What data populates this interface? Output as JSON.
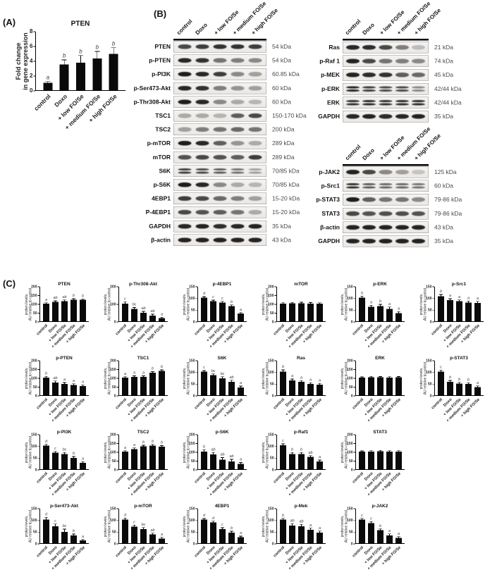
{
  "panelA": {
    "label": "(A)"
  },
  "panelB": {
    "label": "(B)",
    "lanes": [
      "control",
      "Doxo",
      "+ low FO/Se",
      "+ medium FO/Se",
      "+ high FO/Se"
    ],
    "groups": [
      {
        "name": "pi3k-akt-mtor-blots",
        "rows": [
          {
            "label": "PTEN",
            "kda": "54 kDa",
            "bands": [
              0.75,
              0.8,
              0.85,
              0.85,
              0.8
            ]
          },
          {
            "label": "p-PTEN",
            "kda": "54 kDa",
            "bands": [
              0.9,
              0.85,
              0.55,
              0.5,
              0.45
            ]
          },
          {
            "label": "p-PI3K",
            "kda": "60.85 kDa",
            "bands": [
              0.95,
              0.9,
              0.8,
              0.45,
              0.35
            ]
          },
          {
            "label": "p-Ser473-Akt",
            "kda": "60 kDa",
            "bands": [
              0.9,
              0.85,
              0.5,
              0.4,
              0.35
            ]
          },
          {
            "label": "p-Thr308-Akt",
            "kda": "60 kDa",
            "bands": [
              0.95,
              0.9,
              0.45,
              0.3,
              0.25
            ]
          },
          {
            "label": "TSC1",
            "kda": "150-170 kDa",
            "bands": [
              0.3,
              0.3,
              0.25,
              0.65,
              0.75
            ]
          },
          {
            "label": "TSC2",
            "kda": "200 kDa",
            "bands": [
              0.35,
              0.5,
              0.55,
              0.6,
              0.55
            ]
          },
          {
            "label": "p-mTOR",
            "kda": "289 kDa",
            "bands": [
              0.95,
              0.9,
              0.65,
              0.4,
              0.3
            ]
          },
          {
            "label": "mTOR",
            "kda": "289 kDa",
            "bands": [
              0.7,
              0.75,
              0.7,
              0.65,
              0.8
            ]
          },
          {
            "label": "S6K",
            "kda": "70/85 kDa",
            "doublet": true,
            "bands": [
              0.8,
              0.75,
              0.65,
              0.55,
              0.35
            ]
          },
          {
            "label": "p-S6K",
            "kda": "70/85 kDa",
            "bands": [
              0.95,
              0.9,
              0.45,
              0.3,
              0.25
            ]
          },
          {
            "label": "4EBP1",
            "kda": "15-20 kDa",
            "bands": [
              0.8,
              0.75,
              0.6,
              0.5,
              0.35
            ]
          },
          {
            "label": "P-4EBP1",
            "kda": "15-20 kDa",
            "bands": [
              0.75,
              0.7,
              0.65,
              0.55,
              0.3
            ]
          },
          {
            "label": "GAPDH",
            "kda": "35 kDa",
            "bands": [
              0.9,
              0.92,
              0.88,
              0.9,
              0.92
            ]
          },
          {
            "label": "β-actin",
            "kda": "43 kDa",
            "bands": [
              0.92,
              0.92,
              0.92,
              0.92,
              0.92
            ]
          }
        ]
      },
      {
        "name": "ras-erk-blots",
        "rows": [
          {
            "label": "Ras",
            "kda": "21 kDa",
            "bands": [
              0.9,
              0.88,
              0.75,
              0.5,
              0.22
            ]
          },
          {
            "label": "p-Raf 1",
            "kda": "74 kDa",
            "bands": [
              0.92,
              0.75,
              0.55,
              0.5,
              0.45
            ]
          },
          {
            "label": "p-MEK",
            "kda": "45 kDa",
            "bands": [
              0.92,
              0.88,
              0.85,
              0.65,
              0.6
            ]
          },
          {
            "label": "p-ERK",
            "kda": "42/44 kDa",
            "doublet": true,
            "bands": [
              0.92,
              0.8,
              0.75,
              0.75,
              0.45
            ]
          },
          {
            "label": "ERK",
            "kda": "42/44 kDa",
            "doublet": true,
            "bands": [
              0.85,
              0.88,
              0.85,
              0.88,
              0.88
            ]
          },
          {
            "label": "GAPDH",
            "kda": "35 kDa",
            "bands": [
              0.9,
              0.92,
              0.88,
              0.9,
              0.92
            ]
          }
        ]
      },
      {
        "name": "jak-stat-blots",
        "rows": [
          {
            "label": "p-JAK2",
            "kda": "125 kDa",
            "bands": [
              0.92,
              0.75,
              0.45,
              0.35,
              0.18
            ]
          },
          {
            "label": "p-Src1",
            "kda": "60 kDa",
            "doublet": true,
            "bands": [
              0.85,
              0.65,
              0.6,
              0.6,
              0.55
            ]
          },
          {
            "label": "p-STAT3",
            "kda": "79-86 kDa",
            "bands": [
              0.95,
              0.65,
              0.55,
              0.55,
              0.45
            ]
          },
          {
            "label": "STAT3",
            "kda": "79-86 kDa",
            "bands": [
              0.75,
              0.7,
              0.72,
              0.72,
              0.7
            ]
          },
          {
            "label": "β-actin",
            "kda": "43 kDa",
            "bands": [
              0.92,
              0.92,
              0.92,
              0.92,
              0.92
            ]
          },
          {
            "label": "GAPDH",
            "kda": "35 kDa",
            "bands": [
              0.92,
              0.92,
              0.92,
              0.92,
              0.92
            ]
          }
        ]
      }
    ]
  },
  "panelC": {
    "label": "(C)"
  },
  "chart_data": {
    "panelA": {
      "type": "bar",
      "title": "PTEN",
      "ylabel_lines": [
        "Fold change",
        "in gene expression"
      ],
      "categories": [
        "control",
        "Doxo",
        "+ low FO/Se",
        "+ medium FO/Se",
        "+ high FO/Se"
      ],
      "values": [
        1,
        3.5,
        3.7,
        4.3,
        4.9
      ],
      "errors": [
        0.12,
        0.55,
        0.95,
        0.9,
        0.8
      ],
      "letters": [
        "a",
        "b",
        "b",
        "b",
        "b"
      ],
      "ymax": 8,
      "ystep": 2
    },
    "panelC": {
      "type": "bar",
      "ylabel_lines": [
        "protien levels,",
        "AU relative to control"
      ],
      "categories": [
        "control",
        "Doxo",
        "+ low FO/Se",
        "+ medium FO/Se",
        "+ high FO/Se"
      ],
      "layout_rows": [
        6,
        6,
        5,
        5
      ],
      "charts": [
        {
          "title": "PTEN",
          "ymax": 200,
          "ystep": 50,
          "values": [
            100,
            110,
            115,
            122,
            122
          ],
          "errors": [
            4,
            5,
            5,
            5,
            4
          ],
          "letters": [
            "a",
            "ab",
            "ab",
            "b",
            "b"
          ]
        },
        {
          "title": "p-Thr308-Akt",
          "ymax": 200,
          "ystep": 100,
          "values": [
            100,
            70,
            48,
            33,
            18
          ],
          "errors": [
            10,
            7,
            7,
            6,
            4
          ],
          "letters": [
            "c",
            "bc",
            "ab",
            "ab",
            "a"
          ]
        },
        {
          "title": "p-4EBP1",
          "ymax": 150,
          "ystep": 50,
          "values": [
            100,
            85,
            80,
            65,
            33
          ],
          "errors": [
            4,
            4,
            4,
            4,
            3
          ],
          "letters": [
            "d",
            "c",
            "c",
            "b",
            "a"
          ]
        },
        {
          "title": "mTOR",
          "ymax": 200,
          "ystep": 50,
          "values": [
            100,
            102,
            103,
            101,
            100
          ],
          "errors": [
            4,
            4,
            4,
            4,
            4
          ],
          "letters": [
            "",
            "",
            "",
            "",
            ""
          ]
        },
        {
          "title": "p-ERK",
          "ymax": 150,
          "ystep": 50,
          "values": [
            100,
            62,
            65,
            52,
            35
          ],
          "errors": [
            6,
            5,
            6,
            8,
            5
          ],
          "letters": [
            "b",
            "a",
            "b",
            "a",
            "a"
          ]
        },
        {
          "title": "p-Src1",
          "ymax": 150,
          "ystep": 50,
          "values": [
            107,
            90,
            85,
            80,
            78
          ],
          "errors": [
            6,
            5,
            5,
            5,
            6
          ],
          "letters": [
            "b",
            "a",
            "a",
            "a",
            "a"
          ]
        },
        {
          "title": "p-PTEN",
          "ymax": 200,
          "ystep": 50,
          "values": [
            100,
            73,
            65,
            58,
            53
          ],
          "errors": [
            6,
            7,
            6,
            6,
            5
          ],
          "letters": [
            "b",
            "ab",
            "a",
            "a",
            "a"
          ]
        },
        {
          "title": "TSC1",
          "ymax": 200,
          "ystep": 50,
          "values": [
            100,
            105,
            105,
            128,
            138
          ],
          "errors": [
            4,
            4,
            4,
            5,
            5
          ],
          "letters": [
            "a",
            "a",
            "a",
            "b",
            "b"
          ]
        },
        {
          "title": "S6K",
          "ymax": 150,
          "ystep": 50,
          "values": [
            100,
            85,
            72,
            57,
            33
          ],
          "errors": [
            4,
            5,
            6,
            6,
            5
          ],
          "letters": [
            "c",
            "bc",
            "bc",
            "ab",
            "a"
          ]
        },
        {
          "title": "Ras",
          "ymax": 150,
          "ystep": 50,
          "values": [
            100,
            63,
            57,
            48,
            45
          ],
          "errors": [
            7,
            5,
            4,
            4,
            4
          ],
          "letters": [
            "b",
            "a",
            "a",
            "a",
            "a"
          ]
        },
        {
          "title": "ERK",
          "ymax": 200,
          "ystep": 50,
          "values": [
            100,
            103,
            102,
            101,
            102
          ],
          "errors": [
            3,
            3,
            3,
            3,
            3
          ],
          "letters": [
            "",
            "",
            "",
            "",
            ""
          ]
        },
        {
          "title": "p-STAT3",
          "ymax": 150,
          "ystep": 50,
          "values": [
            100,
            57,
            50,
            48,
            35
          ],
          "errors": [
            6,
            5,
            4,
            4,
            4
          ],
          "letters": [
            "c",
            "b",
            "b",
            "b",
            "a"
          ]
        },
        {
          "title": "p-PI3K",
          "ymax": 150,
          "ystep": 50,
          "values": [
            100,
            70,
            65,
            48,
            27
          ],
          "errors": [
            5,
            5,
            5,
            5,
            4
          ],
          "letters": [
            "d",
            "c",
            "bc",
            "b",
            "a"
          ]
        },
        {
          "title": "TSC2",
          "ymax": 200,
          "ystep": 50,
          "values": [
            100,
            115,
            130,
            135,
            128
          ],
          "errors": [
            4,
            5,
            5,
            5,
            5
          ],
          "letters": [
            "a",
            "a",
            "b",
            "b",
            "b"
          ]
        },
        {
          "title": "p-S6K",
          "ymax": 200,
          "ystep": 50,
          "values": [
            100,
            85,
            55,
            45,
            30
          ],
          "errors": [
            10,
            9,
            10,
            10,
            7
          ],
          "letters": [
            "b",
            "ab",
            "ab",
            "ab",
            "a"
          ]
        },
        {
          "title": "p-Raf1",
          "ymax": 150,
          "ystep": 50,
          "values": [
            102,
            65,
            65,
            52,
            33
          ],
          "errors": [
            5,
            5,
            5,
            5,
            5
          ],
          "letters": [
            "c",
            "b",
            "b",
            "ab",
            "a"
          ]
        },
        {
          "title": "STAT3",
          "ymax": 200,
          "ystep": 50,
          "values": [
            100,
            101,
            103,
            101,
            101
          ],
          "errors": [
            3,
            3,
            3,
            3,
            3
          ],
          "letters": [
            "",
            "",
            "",
            "",
            ""
          ]
        },
        {
          "title": "p-Ser473-Akt",
          "ymax": 150,
          "ystep": 50,
          "values": [
            100,
            72,
            48,
            33,
            12
          ],
          "errors": [
            9,
            9,
            11,
            5,
            3
          ],
          "letters": [
            "d",
            "c",
            "bc",
            "b",
            "a"
          ]
        },
        {
          "title": "p-mTOR",
          "ymax": 150,
          "ystep": 50,
          "values": [
            100,
            70,
            60,
            37,
            20
          ],
          "errors": [
            6,
            6,
            6,
            5,
            4
          ],
          "letters": [
            "d",
            "c",
            "bc",
            "ab",
            "a"
          ]
        },
        {
          "title": "4EBP1",
          "ymax": 150,
          "ystep": 50,
          "values": [
            100,
            88,
            60,
            45,
            25
          ],
          "errors": [
            4,
            5,
            5,
            5,
            4
          ],
          "letters": [
            "d",
            "d",
            "c",
            "b",
            "a"
          ]
        },
        {
          "title": "p-Mek",
          "ymax": 150,
          "ystep": 50,
          "values": [
            100,
            75,
            72,
            57,
            45
          ],
          "errors": [
            5,
            7,
            7,
            6,
            6
          ],
          "letters": [
            "b",
            "ab",
            "ab",
            "a",
            "a"
          ]
        },
        {
          "title": "p-JAK2",
          "ymax": 150,
          "ystep": 50,
          "values": [
            100,
            85,
            55,
            33,
            22
          ],
          "errors": [
            5,
            6,
            5,
            6,
            5
          ],
          "letters": [
            "c",
            "c",
            "b",
            "a",
            "a"
          ]
        }
      ]
    }
  }
}
